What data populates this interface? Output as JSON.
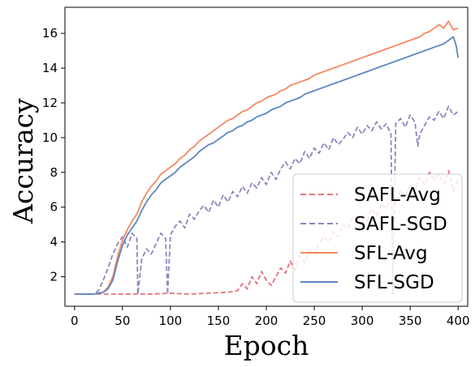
{
  "chart_data": {
    "type": "line",
    "xlabel": "Epoch",
    "ylabel": "Accuracy",
    "xlim": [
      -10,
      410
    ],
    "ylim": [
      0.3,
      17.5
    ],
    "xticks": [
      0,
      50,
      100,
      150,
      200,
      250,
      300,
      350,
      400
    ],
    "yticks": [
      2,
      4,
      6,
      8,
      10,
      12,
      14,
      16
    ],
    "grid": false,
    "legend_position": "lower-right",
    "series": [
      {
        "name": "SAFL-Avg",
        "color": "#e3747a",
        "style": "dashed",
        "x": [
          0,
          20,
          40,
          60,
          80,
          100,
          120,
          140,
          160,
          170,
          175,
          180,
          185,
          190,
          195,
          200,
          205,
          210,
          215,
          220,
          225,
          230,
          235,
          240,
          245,
          250,
          255,
          260,
          265,
          270,
          275,
          280,
          285,
          290,
          295,
          300,
          305,
          310,
          315,
          320,
          325,
          330,
          335,
          340,
          345,
          350,
          355,
          360,
          365,
          370,
          375,
          380,
          385,
          390,
          395,
          400
        ],
        "y": [
          1.0,
          1.0,
          1.0,
          1.0,
          1.0,
          1.05,
          1.0,
          1.05,
          1.1,
          1.2,
          1.6,
          1.3,
          2.0,
          1.6,
          2.3,
          1.8,
          1.5,
          2.0,
          2.5,
          2.2,
          2.9,
          2.4,
          3.2,
          2.8,
          3.5,
          3.3,
          3.9,
          4.3,
          4.0,
          4.6,
          4.3,
          5.0,
          4.8,
          5.4,
          5.1,
          5.6,
          5.2,
          5.9,
          5.5,
          6.2,
          5.9,
          6.6,
          6.2,
          7.0,
          6.6,
          7.3,
          7.0,
          7.7,
          7.3,
          8.0,
          7.6,
          7.9,
          7.3,
          8.1,
          6.9,
          7.6
        ]
      },
      {
        "name": "SAFL-SGD",
        "color": "#9084be",
        "style": "dashed",
        "x": [
          0,
          20,
          25,
          30,
          35,
          40,
          45,
          50,
          55,
          60,
          65,
          66,
          70,
          75,
          80,
          85,
          90,
          95,
          97,
          100,
          105,
          110,
          115,
          120,
          125,
          130,
          135,
          140,
          145,
          150,
          155,
          160,
          165,
          170,
          175,
          180,
          185,
          190,
          195,
          200,
          205,
          210,
          215,
          220,
          225,
          230,
          235,
          240,
          245,
          250,
          255,
          260,
          265,
          270,
          275,
          280,
          285,
          290,
          295,
          300,
          305,
          310,
          315,
          320,
          325,
          330,
          332,
          335,
          340,
          345,
          350,
          355,
          358,
          360,
          365,
          370,
          375,
          380,
          385,
          390,
          395,
          400
        ],
        "y": [
          1.0,
          1.0,
          1.2,
          1.8,
          2.5,
          3.3,
          3.9,
          4.3,
          3.7,
          4.5,
          4.2,
          1.0,
          3.0,
          3.6,
          3.3,
          3.9,
          4.5,
          4.2,
          1.0,
          4.4,
          4.9,
          5.2,
          4.8,
          5.6,
          5.3,
          5.8,
          6.1,
          5.7,
          6.4,
          6.0,
          6.7,
          6.3,
          6.9,
          6.6,
          7.2,
          6.8,
          7.4,
          7.1,
          7.7,
          7.3,
          8.0,
          7.6,
          8.2,
          8.6,
          8.2,
          8.8,
          8.5,
          9.2,
          8.8,
          9.4,
          9.1,
          9.7,
          9.3,
          10.0,
          9.6,
          9.9,
          10.3,
          10.0,
          10.6,
          10.2,
          10.7,
          10.4,
          10.9,
          10.5,
          10.8,
          10.2,
          1.0,
          10.8,
          11.1,
          10.6,
          11.3,
          10.9,
          9.5,
          10.2,
          10.7,
          11.2,
          11.0,
          11.5,
          11.1,
          11.8,
          11.3,
          11.5
        ]
      },
      {
        "name": "SFL-Avg",
        "color": "#f4895f",
        "style": "solid",
        "x": [
          0,
          20,
          30,
          35,
          40,
          45,
          50,
          55,
          60,
          65,
          70,
          75,
          80,
          85,
          90,
          95,
          100,
          105,
          110,
          115,
          120,
          125,
          130,
          135,
          140,
          145,
          150,
          155,
          160,
          165,
          170,
          175,
          180,
          185,
          190,
          195,
          200,
          205,
          210,
          215,
          220,
          225,
          230,
          235,
          240,
          245,
          250,
          255,
          260,
          265,
          270,
          275,
          280,
          285,
          290,
          295,
          300,
          305,
          310,
          315,
          320,
          325,
          330,
          335,
          340,
          345,
          350,
          355,
          360,
          365,
          370,
          375,
          380,
          385,
          390,
          395,
          400
        ],
        "y": [
          1.0,
          1.0,
          1.1,
          1.4,
          2.0,
          3.2,
          4.1,
          4.7,
          5.2,
          5.6,
          6.3,
          6.8,
          7.2,
          7.5,
          7.9,
          8.1,
          8.3,
          8.5,
          8.8,
          9.0,
          9.3,
          9.5,
          9.8,
          10.0,
          10.2,
          10.4,
          10.6,
          10.8,
          11.0,
          11.1,
          11.3,
          11.5,
          11.6,
          11.8,
          12.0,
          12.1,
          12.3,
          12.4,
          12.5,
          12.7,
          12.8,
          13.0,
          13.1,
          13.2,
          13.3,
          13.4,
          13.6,
          13.7,
          13.8,
          13.9,
          14.0,
          14.1,
          14.2,
          14.3,
          14.4,
          14.5,
          14.6,
          14.7,
          14.8,
          14.9,
          15.0,
          15.1,
          15.2,
          15.3,
          15.4,
          15.5,
          15.6,
          15.7,
          15.8,
          16.0,
          16.1,
          16.3,
          16.5,
          16.3,
          16.7,
          16.2,
          16.3
        ]
      },
      {
        "name": "SFL-SGD",
        "color": "#5b87c0",
        "style": "solid",
        "x": [
          0,
          20,
          30,
          35,
          40,
          45,
          50,
          55,
          60,
          65,
          70,
          75,
          80,
          85,
          90,
          95,
          100,
          105,
          110,
          115,
          120,
          125,
          130,
          135,
          140,
          145,
          150,
          155,
          160,
          165,
          170,
          175,
          180,
          185,
          190,
          195,
          200,
          205,
          210,
          215,
          220,
          225,
          230,
          235,
          240,
          245,
          250,
          255,
          260,
          265,
          270,
          275,
          280,
          285,
          290,
          295,
          300,
          305,
          310,
          315,
          320,
          325,
          330,
          335,
          340,
          345,
          350,
          355,
          360,
          365,
          370,
          375,
          380,
          385,
          390,
          395,
          398,
          400
        ],
        "y": [
          1.0,
          1.0,
          1.1,
          1.3,
          1.8,
          2.9,
          3.8,
          4.4,
          4.8,
          5.2,
          5.8,
          6.3,
          6.7,
          7.0,
          7.4,
          7.6,
          7.8,
          8.0,
          8.3,
          8.5,
          8.7,
          8.9,
          9.2,
          9.4,
          9.6,
          9.7,
          9.9,
          10.1,
          10.3,
          10.4,
          10.6,
          10.7,
          10.9,
          11.0,
          11.2,
          11.3,
          11.4,
          11.6,
          11.7,
          11.8,
          12.0,
          12.1,
          12.2,
          12.3,
          12.5,
          12.6,
          12.7,
          12.8,
          12.9,
          13.0,
          13.1,
          13.2,
          13.3,
          13.4,
          13.5,
          13.6,
          13.7,
          13.8,
          13.9,
          14.0,
          14.1,
          14.2,
          14.3,
          14.4,
          14.5,
          14.6,
          14.7,
          14.8,
          14.9,
          15.0,
          15.1,
          15.2,
          15.3,
          15.4,
          15.6,
          15.8,
          15.3,
          14.6
        ]
      }
    ]
  }
}
